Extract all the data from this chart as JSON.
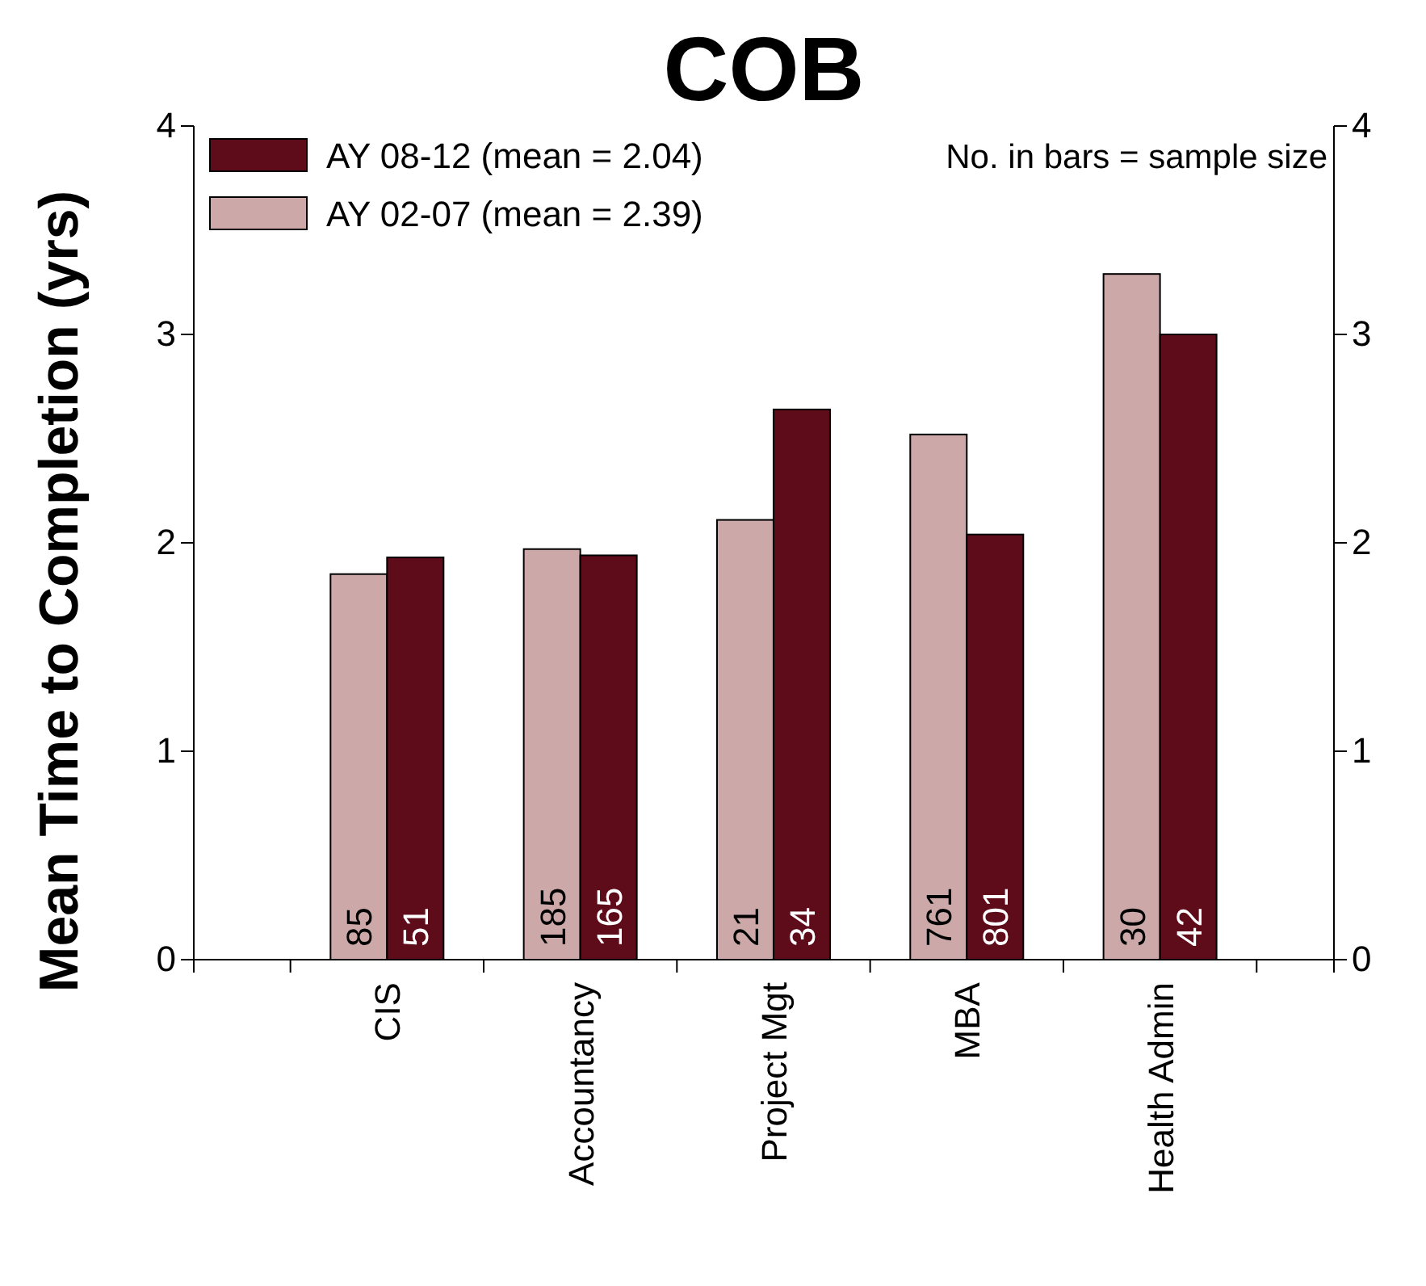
{
  "chart_data": {
    "type": "bar",
    "title": "COB",
    "ylabel": "Mean Time to Completion (yrs)",
    "categories": [
      "CIS",
      "Accountancy",
      "Project Mgt",
      "MBA",
      "Health Admin"
    ],
    "series": [
      {
        "name": "AY 02-07 (mean = 2.39)",
        "color": "#cca8a8",
        "values": [
          1.85,
          1.97,
          2.11,
          2.52,
          3.29
        ]
      },
      {
        "name": "AY 08-12 (mean = 2.04)",
        "color": "#5e0b1a",
        "values": [
          1.93,
          1.94,
          2.64,
          2.04,
          3.0
        ]
      }
    ],
    "ylim": [
      0,
      4
    ],
    "yticks": [
      0,
      1,
      2,
      3,
      4
    ],
    "y2lim": [
      0,
      4
    ],
    "y2ticks": [
      0,
      1,
      2,
      3,
      4
    ],
    "legend": "top left",
    "annotations": [
      "No. in bars = sample size",
      "85",
      "51",
      "185",
      "165",
      "21",
      "34",
      "761",
      "801",
      "30",
      "42"
    ]
  }
}
